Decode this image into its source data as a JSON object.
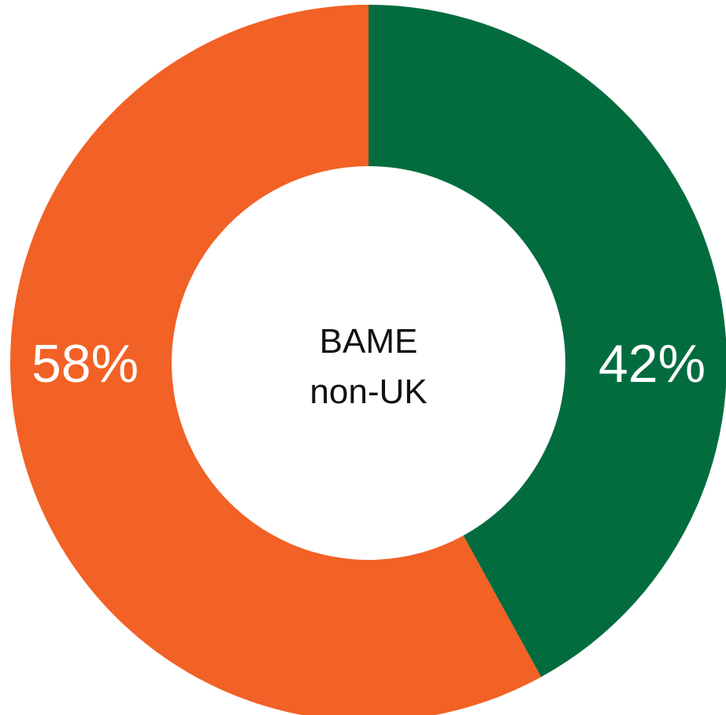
{
  "chart_data": {
    "type": "pie",
    "variant": "donut",
    "center_label": {
      "line1": "BAME",
      "line2": "non-UK"
    },
    "slices": [
      {
        "label": "42%",
        "value": 42,
        "color": "#026C3F"
      },
      {
        "label": "58%",
        "value": 58,
        "color": "#F26125"
      }
    ],
    "start": "top",
    "direction": "clockwise",
    "legend": "none"
  }
}
